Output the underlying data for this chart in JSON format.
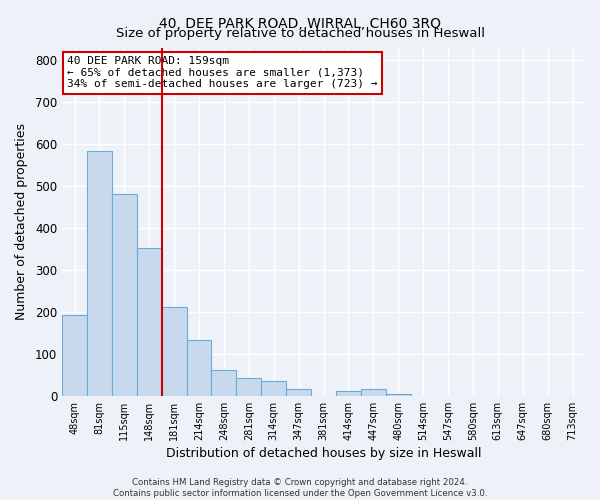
{
  "title": "40, DEE PARK ROAD, WIRRAL, CH60 3RQ",
  "subtitle": "Size of property relative to detached houses in Heswall",
  "xlabel": "Distribution of detached houses by size in Heswall",
  "ylabel": "Number of detached properties",
  "bar_labels": [
    "48sqm",
    "81sqm",
    "115sqm",
    "148sqm",
    "181sqm",
    "214sqm",
    "248sqm",
    "281sqm",
    "314sqm",
    "347sqm",
    "381sqm",
    "414sqm",
    "447sqm",
    "480sqm",
    "514sqm",
    "547sqm",
    "580sqm",
    "613sqm",
    "647sqm",
    "680sqm",
    "713sqm"
  ],
  "bar_values": [
    193,
    583,
    480,
    353,
    211,
    133,
    61,
    43,
    36,
    17,
    0,
    12,
    17,
    5,
    0,
    0,
    0,
    0,
    0,
    0,
    0
  ],
  "bar_color": "#c8d9ee",
  "bar_edge_color": "#6aaad4",
  "vline_x": 3.5,
  "vline_color": "#cc0000",
  "ylim": [
    0,
    830
  ],
  "yticks": [
    0,
    100,
    200,
    300,
    400,
    500,
    600,
    700,
    800
  ],
  "annotation_title": "40 DEE PARK ROAD: 159sqm",
  "annotation_line1": "← 65% of detached houses are smaller (1,373)",
  "annotation_line2": "34% of semi-detached houses are larger (723) →",
  "annotation_box_color": "#ffffff",
  "annotation_border_color": "#cc0000",
  "footer_line1": "Contains HM Land Registry data © Crown copyright and database right 2024.",
  "footer_line2": "Contains public sector information licensed under the Open Government Licence v3.0.",
  "background_color": "#eef2f8",
  "grid_color": "#ffffff",
  "title_fontsize": 10,
  "subtitle_fontsize": 9.5,
  "label_fontsize": 9
}
